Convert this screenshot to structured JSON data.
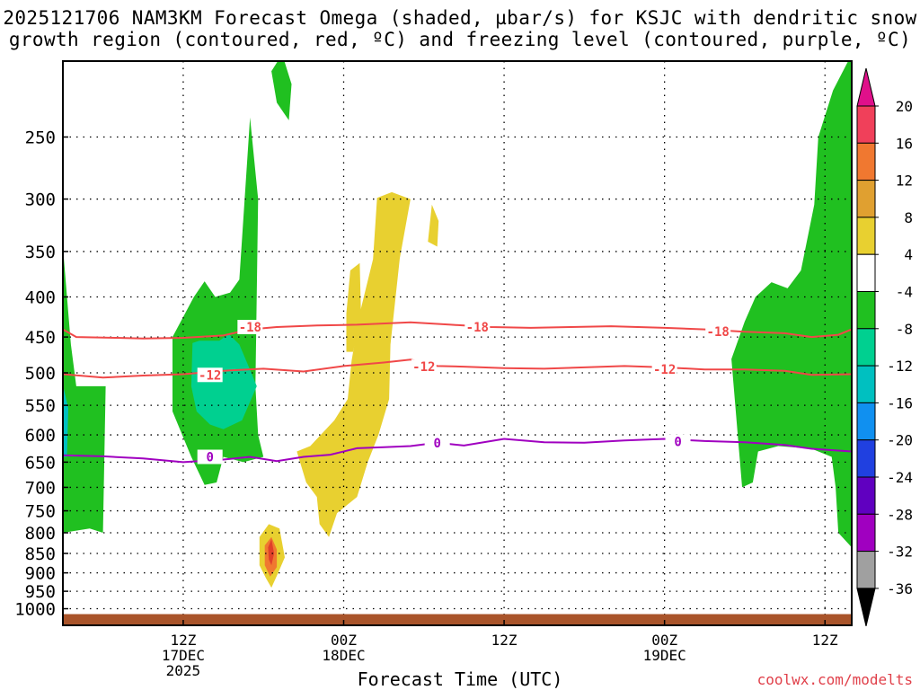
{
  "title_line1": "2025121706 NAM3KM Forecast Omega (shaded, µbar/s) for KSJC with dendritic snow",
  "title_line2": "growth region (contoured, red, ºC) and freezing level (contoured, purple, ºC)",
  "credit": "coolwx.com/modelts",
  "chart_data": {
    "type": "area",
    "xlabel": "Forecast Time (UTC)",
    "ylabel": "",
    "x_range_hours": [
      -9,
      50
    ],
    "y_scale": "log",
    "y_range_hPa": [
      1050,
      200
    ],
    "y_ticks": [
      250,
      300,
      350,
      400,
      450,
      500,
      550,
      600,
      650,
      700,
      750,
      800,
      850,
      900,
      950,
      1000
    ],
    "x_ticks": [
      {
        "hour": 0,
        "lines": [
          "12Z",
          "17DEC",
          "2025"
        ]
      },
      {
        "hour": 12,
        "lines": [
          "00Z",
          "18DEC"
        ]
      },
      {
        "hour": 24,
        "lines": [
          "12Z"
        ]
      },
      {
        "hour": 36,
        "lines": [
          "00Z",
          "19DEC"
        ]
      },
      {
        "hour": 48,
        "lines": [
          "12Z"
        ]
      }
    ],
    "grid": true,
    "colorbar": {
      "labels": [
        "20",
        "16",
        "12",
        "8",
        "4",
        "-4",
        "-8",
        "-12",
        "-16",
        "-20",
        "-24",
        "-28",
        "-32",
        "-36"
      ],
      "colors": [
        "#f0405a",
        "#f07830",
        "#e0a030",
        "#e8d030",
        "#ffffff",
        "#20c020",
        "#00d090",
        "#00c0c0",
        "#1090f0",
        "#2040e0",
        "#6000c0",
        "#a000c0",
        "#a0a0a0"
      ],
      "top_arrow_color": "#e0108a",
      "bottom_arrow_color": "#000000"
    },
    "series": [
      {
        "kind": "contour",
        "label": "-18",
        "color": "#f04848",
        "points": [
          [
            -9,
            440
          ],
          [
            -8,
            450
          ],
          [
            -5,
            451
          ],
          [
            -3,
            452
          ],
          [
            0,
            451
          ],
          [
            3,
            448
          ],
          [
            5,
            440
          ],
          [
            7,
            437
          ],
          [
            10,
            435
          ],
          [
            13,
            434
          ],
          [
            17,
            431
          ],
          [
            20,
            434
          ],
          [
            23,
            437
          ],
          [
            26,
            438
          ],
          [
            29,
            437
          ],
          [
            32,
            436
          ],
          [
            36,
            438
          ],
          [
            39,
            440
          ],
          [
            42,
            443
          ],
          [
            45,
            445
          ],
          [
            47,
            450
          ],
          [
            49,
            447
          ],
          [
            50,
            440
          ]
        ],
        "label_at": [
          [
            5,
            437
          ],
          [
            22,
            437
          ],
          [
            40,
            443
          ]
        ]
      },
      {
        "kind": "contour",
        "label": "-12",
        "color": "#f04848",
        "points": [
          [
            -9,
            502
          ],
          [
            -6,
            507
          ],
          [
            -3,
            504
          ],
          [
            0,
            502
          ],
          [
            3,
            497
          ],
          [
            6,
            494
          ],
          [
            9,
            498
          ],
          [
            12,
            490
          ],
          [
            15,
            485
          ],
          [
            17,
            481
          ],
          [
            19,
            490
          ],
          [
            21,
            491
          ],
          [
            24,
            493
          ],
          [
            27,
            494
          ],
          [
            30,
            492
          ],
          [
            33,
            490
          ],
          [
            36,
            492
          ],
          [
            39,
            495
          ],
          [
            42,
            495
          ],
          [
            45,
            497
          ],
          [
            47,
            503
          ],
          [
            50,
            502
          ]
        ],
        "label_at": [
          [
            2,
            503
          ],
          [
            18,
            491
          ],
          [
            36,
            495
          ]
        ]
      },
      {
        "kind": "contour",
        "label": "0",
        "color": "#a000c0",
        "points": [
          [
            -9,
            637
          ],
          [
            -6,
            639
          ],
          [
            -3,
            643
          ],
          [
            0,
            650
          ],
          [
            3,
            645
          ],
          [
            5,
            640
          ],
          [
            7,
            648
          ],
          [
            9,
            640
          ],
          [
            11,
            636
          ],
          [
            13,
            624
          ],
          [
            15,
            622
          ],
          [
            17,
            620
          ],
          [
            19,
            614
          ],
          [
            21,
            619
          ],
          [
            24,
            607
          ],
          [
            27,
            613
          ],
          [
            30,
            614
          ],
          [
            33,
            610
          ],
          [
            36,
            607
          ],
          [
            39,
            611
          ],
          [
            42,
            613
          ],
          [
            45,
            618
          ],
          [
            47,
            625
          ],
          [
            50,
            630
          ]
        ],
        "label_at": [
          [
            2,
            640
          ],
          [
            19,
            614
          ],
          [
            37,
            612
          ]
        ]
      }
    ],
    "shaded_regions": [
      {
        "level": "-8",
        "color": "#20c020",
        "points": [
          [
            -9,
            345
          ],
          [
            -8.4,
            460
          ],
          [
            -8,
            520
          ],
          [
            -5.8,
            520
          ],
          [
            -6,
            800
          ],
          [
            -7,
            790
          ],
          [
            -9,
            800
          ]
        ]
      },
      {
        "level": "-8",
        "color": "#20c020",
        "points": [
          [
            -0.8,
            450
          ],
          [
            0.8,
            400
          ],
          [
            1.6,
            382
          ],
          [
            2.4,
            400
          ],
          [
            3.5,
            395
          ],
          [
            4.2,
            380
          ],
          [
            5,
            236
          ],
          [
            5.6,
            300
          ],
          [
            5.4,
            520
          ],
          [
            5.6,
            600
          ],
          [
            6,
            640
          ],
          [
            4.5,
            650
          ],
          [
            3,
            640
          ],
          [
            2.5,
            690
          ],
          [
            1.6,
            695
          ],
          [
            0.6,
            640
          ],
          [
            -0.8,
            560
          ]
        ]
      },
      {
        "level": "-8",
        "color": "#20c020",
        "points": [
          [
            6.6,
            206
          ],
          [
            7.4,
            196
          ],
          [
            8.1,
            214
          ],
          [
            7.9,
            238
          ],
          [
            7,
            226
          ]
        ]
      },
      {
        "level": "-8",
        "color": "#20c020",
        "points": [
          [
            41,
            480
          ],
          [
            42,
            430
          ],
          [
            42.8,
            400
          ],
          [
            44,
            383
          ],
          [
            45.2,
            390
          ],
          [
            46.2,
            370
          ],
          [
            47.2,
            305
          ],
          [
            47.5,
            250
          ],
          [
            48.6,
            218
          ],
          [
            50,
            196
          ],
          [
            50,
            835
          ],
          [
            49,
            800
          ],
          [
            48.8,
            700
          ],
          [
            48.5,
            640
          ],
          [
            47,
            625
          ],
          [
            44.5,
            620
          ],
          [
            43,
            630
          ],
          [
            42.6,
            690
          ],
          [
            41.8,
            700
          ]
        ]
      },
      {
        "level": "-12",
        "color": "#00d090",
        "points": [
          [
            0.7,
            458
          ],
          [
            1.2,
            455
          ],
          [
            2.7,
            455
          ],
          [
            3.4,
            446
          ],
          [
            4.2,
            460
          ],
          [
            5.2,
            505
          ],
          [
            5.5,
            520
          ],
          [
            4.4,
            575
          ],
          [
            3,
            590
          ],
          [
            2,
            582
          ],
          [
            1,
            560
          ],
          [
            0.6,
            520
          ]
        ]
      },
      {
        "level": "-12",
        "color": "#00c0c0",
        "points": [
          [
            -9,
            518
          ],
          [
            -8.6,
            555
          ],
          [
            -8.7,
            640
          ],
          [
            -9,
            640
          ]
        ]
      },
      {
        "level": "8",
        "color": "#e8d030",
        "points": [
          [
            8.5,
            630
          ],
          [
            9.5,
            620
          ],
          [
            11.3,
            575
          ],
          [
            12.3,
            540
          ],
          [
            12.6,
            482
          ],
          [
            13.2,
            420
          ],
          [
            14.2,
            358
          ],
          [
            14.5,
            299
          ],
          [
            15.6,
            294
          ],
          [
            17,
            300
          ],
          [
            16.2,
            357
          ],
          [
            15.5,
            460
          ],
          [
            15.4,
            540
          ],
          [
            14.6,
            600
          ],
          [
            13.8,
            650
          ],
          [
            13,
            720
          ],
          [
            11.5,
            755
          ],
          [
            10.9,
            810
          ],
          [
            10.2,
            780
          ],
          [
            10,
            720
          ],
          [
            9.2,
            690
          ]
        ]
      },
      {
        "level": "8",
        "color": "#e8d030",
        "points": [
          [
            12.2,
            470
          ],
          [
            12.2,
            420
          ],
          [
            12.5,
            370
          ],
          [
            13.2,
            362
          ],
          [
            13.3,
            425
          ],
          [
            12.7,
            470
          ]
        ]
      },
      {
        "level": "8",
        "color": "#e8d030",
        "points": [
          [
            18.3,
            340
          ],
          [
            18.6,
            305
          ],
          [
            19.1,
            320
          ],
          [
            19,
            345
          ]
        ]
      },
      {
        "level": "8",
        "color": "#e8d030",
        "points": [
          [
            5.7,
            810
          ],
          [
            6.4,
            780
          ],
          [
            7.2,
            790
          ],
          [
            7.6,
            860
          ],
          [
            7.1,
            900
          ],
          [
            6.6,
            940
          ],
          [
            6.2,
            915
          ],
          [
            5.7,
            880
          ]
        ]
      },
      {
        "level": "12",
        "color": "#f07830",
        "points": [
          [
            6.1,
            830
          ],
          [
            6.6,
            810
          ],
          [
            7,
            840
          ],
          [
            7,
            885
          ],
          [
            6.5,
            910
          ],
          [
            6.1,
            880
          ]
        ]
      },
      {
        "level": "16",
        "color": "#e0402a",
        "points": [
          [
            6.35,
            835
          ],
          [
            6.6,
            815
          ],
          [
            6.8,
            850
          ],
          [
            6.6,
            880
          ],
          [
            6.4,
            865
          ]
        ]
      }
    ]
  }
}
